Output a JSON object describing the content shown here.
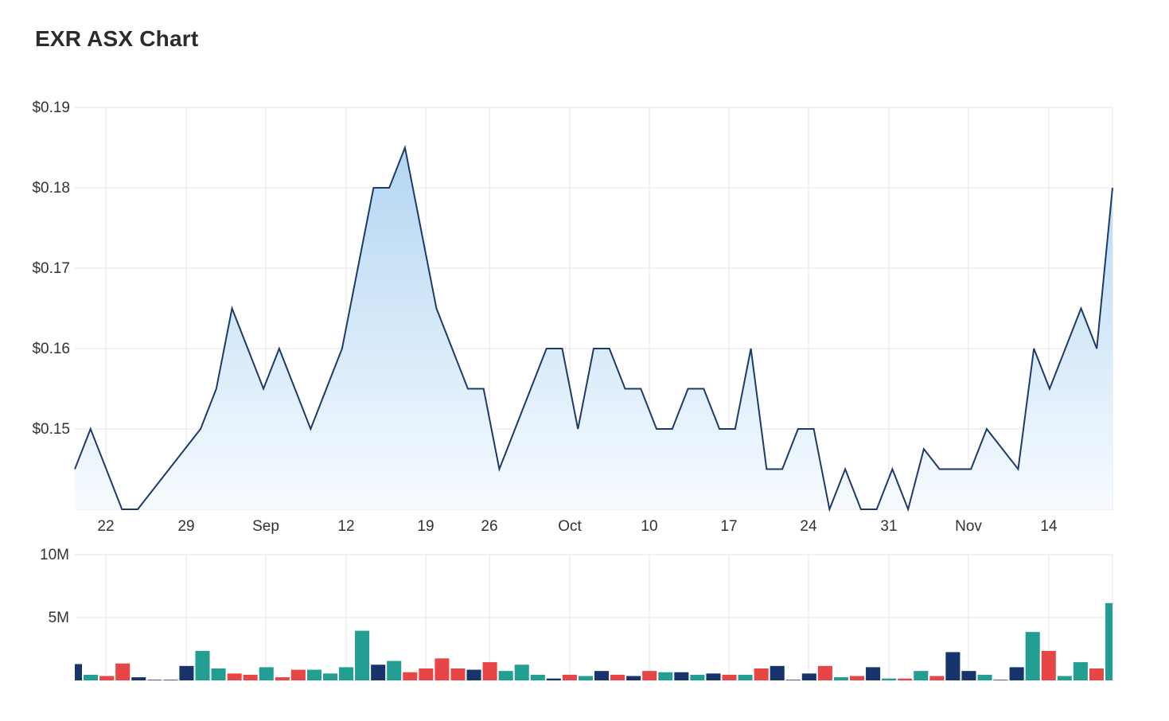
{
  "title": "EXR ASX Chart",
  "colors": {
    "line": "#1d3a6b",
    "area_top": "#b3d6f2",
    "area_bottom": "#f7fbff",
    "grid": "#e6e6e6",
    "vol_dark": "#17356b",
    "vol_teal": "#229e93",
    "vol_red": "#e84646"
  },
  "chart_data": [
    {
      "type": "area",
      "title": "EXR ASX Chart",
      "xlabel": "",
      "ylabel": "",
      "ylim": [
        0.14,
        0.19
      ],
      "y_ticks": [
        "$0.19",
        "$0.18",
        "$0.17",
        "$0.16",
        "$0.15"
      ],
      "x_ticks": [
        "22",
        "29",
        "Sep",
        "12",
        "19",
        "26",
        "Oct",
        "10",
        "17",
        "24",
        "31",
        "Nov",
        "14"
      ],
      "grid": true,
      "series": [
        {
          "values": [
            0.145,
            0.15,
            0.145,
            0.14,
            0.14,
            0.1425,
            0.145,
            0.1475,
            0.15,
            0.155,
            0.165,
            0.16,
            0.155,
            0.16,
            0.155,
            0.15,
            0.155,
            0.16,
            0.17,
            0.18,
            0.18,
            0.185,
            0.175,
            0.165,
            0.16,
            0.155,
            0.155,
            0.145,
            0.15,
            0.155,
            0.16,
            0.16,
            0.15,
            0.16,
            0.16,
            0.155,
            0.155,
            0.15,
            0.15,
            0.155,
            0.155,
            0.15,
            0.15,
            0.16,
            0.145,
            0.145,
            0.15,
            0.15,
            0.14,
            0.145,
            0.14,
            0.14,
            0.145,
            0.14,
            0.1475,
            0.145,
            0.145,
            0.145,
            0.15,
            0.1475,
            0.145,
            0.16,
            0.155,
            0.16,
            0.165,
            0.16,
            0.18
          ]
        }
      ]
    },
    {
      "type": "bar",
      "title": "",
      "ylim": [
        0,
        10000000
      ],
      "y_ticks": [
        "10M",
        "5M"
      ],
      "grid": true,
      "series": [
        {
          "values": [
            1300000,
            450000,
            350000,
            1350000,
            250000,
            50000,
            50000,
            1150000,
            2350000,
            950000,
            550000,
            450000,
            1050000,
            250000,
            850000,
            850000,
            550000,
            1050000,
            3950000,
            1250000,
            1550000,
            650000,
            950000,
            1750000,
            950000,
            850000,
            1450000,
            750000,
            1250000,
            450000,
            150000,
            450000,
            350000,
            750000,
            450000,
            350000,
            750000,
            650000,
            650000,
            450000,
            550000,
            450000,
            450000,
            950000,
            1150000,
            50000,
            550000,
            1150000,
            250000,
            350000,
            1050000,
            150000,
            150000,
            750000,
            350000,
            2250000,
            750000,
            450000,
            50000,
            1050000,
            3850000,
            2350000,
            350000,
            1450000,
            950000,
            6150000
          ],
          "colors": [
            "dark",
            "teal",
            "red",
            "red",
            "dark",
            "dark",
            "dark",
            "dark",
            "teal",
            "teal",
            "red",
            "red",
            "teal",
            "red",
            "red",
            "teal",
            "teal",
            "teal",
            "teal",
            "dark",
            "teal",
            "red",
            "red",
            "red",
            "red",
            "dark",
            "red",
            "teal",
            "teal",
            "teal",
            "dark",
            "red",
            "teal",
            "dark",
            "red",
            "dark",
            "red",
            "teal",
            "dark",
            "teal",
            "dark",
            "red",
            "teal",
            "red",
            "dark",
            "dark",
            "dark",
            "red",
            "teal",
            "red",
            "dark",
            "teal",
            "red",
            "teal",
            "red",
            "dark",
            "dark",
            "teal",
            "dark",
            "dark",
            "teal",
            "red",
            "teal",
            "teal",
            "red",
            "teal"
          ]
        }
      ]
    }
  ]
}
